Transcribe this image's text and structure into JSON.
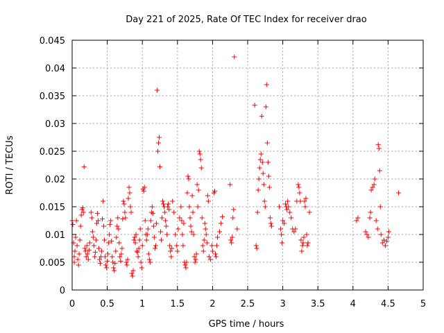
{
  "chart_data": {
    "type": "scatter",
    "title": "Day 221 of 2025, Rate Of TEC Index for receiver drao",
    "xlabel": "GPS time / hours",
    "ylabel": "ROTI / TECUs",
    "xlim": [
      0,
      5
    ],
    "ylim": [
      0,
      0.045
    ],
    "xticks": [
      0,
      0.5,
      1,
      1.5,
      2,
      2.5,
      3,
      3.5,
      4,
      4.5,
      5
    ],
    "xtick_labels": [
      "0",
      "0.5",
      "1",
      "1.5",
      "2",
      "2.5",
      "3",
      "3.5",
      "4",
      "4.5",
      "5"
    ],
    "yticks": [
      0,
      0.005,
      0.01,
      0.015,
      0.02,
      0.025,
      0.03,
      0.035,
      0.04,
      0.045
    ],
    "ytick_labels": [
      "0",
      "0.005",
      "0.01",
      "0.015",
      "0.02",
      "0.025",
      "0.03",
      "0.035",
      "0.04",
      "0.045"
    ],
    "grid": true,
    "marker": "+",
    "color": "#ff0000",
    "series": [
      {
        "name": "drao",
        "points": [
          [
            0.0,
            0.0125
          ],
          [
            0.01,
            0.0118
          ],
          [
            0.02,
            0.0085
          ],
          [
            0.03,
            0.006
          ],
          [
            0.03,
            0.005
          ],
          [
            0.04,
            0.007
          ],
          [
            0.05,
            0.0095
          ],
          [
            0.06,
            0.0125
          ],
          [
            0.07,
            0.008
          ],
          [
            0.08,
            0.0055
          ],
          [
            0.09,
            0.0045
          ],
          [
            0.1,
            0.0065
          ],
          [
            0.11,
            0.009
          ],
          [
            0.12,
            0.0115
          ],
          [
            0.13,
            0.0135
          ],
          [
            0.14,
            0.0145
          ],
          [
            0.15,
            0.0148
          ],
          [
            0.16,
            0.014
          ],
          [
            0.17,
            0.0222
          ],
          [
            0.18,
            0.0075
          ],
          [
            0.19,
            0.007
          ],
          [
            0.2,
            0.006
          ],
          [
            0.21,
            0.008
          ],
          [
            0.22,
            0.0065
          ],
          [
            0.23,
            0.0055
          ],
          [
            0.24,
            0.0072
          ],
          [
            0.25,
            0.0085
          ],
          [
            0.27,
            0.014
          ],
          [
            0.28,
            0.013
          ],
          [
            0.29,
            0.0105
          ],
          [
            0.3,
            0.0095
          ],
          [
            0.31,
            0.008
          ],
          [
            0.32,
            0.006
          ],
          [
            0.33,
            0.0068
          ],
          [
            0.34,
            0.009
          ],
          [
            0.35,
            0.012
          ],
          [
            0.36,
            0.0138
          ],
          [
            0.37,
            0.0125
          ],
          [
            0.38,
            0.0075
          ],
          [
            0.39,
            0.0055
          ],
          [
            0.4,
            0.0048
          ],
          [
            0.41,
            0.006
          ],
          [
            0.42,
            0.007
          ],
          [
            0.43,
            0.0128
          ],
          [
            0.44,
            0.016
          ],
          [
            0.45,
            0.0115
          ],
          [
            0.46,
            0.009
          ],
          [
            0.47,
            0.006
          ],
          [
            0.48,
            0.0045
          ],
          [
            0.49,
            0.004
          ],
          [
            0.5,
            0.0052
          ],
          [
            0.51,
            0.0065
          ],
          [
            0.52,
            0.0085
          ],
          [
            0.53,
            0.01
          ],
          [
            0.54,
            0.0118
          ],
          [
            0.55,
            0.0125
          ],
          [
            0.56,
            0.0088
          ],
          [
            0.57,
            0.006
          ],
          [
            0.58,
            0.005
          ],
          [
            0.59,
            0.004
          ],
          [
            0.6,
            0.0035
          ],
          [
            0.61,
            0.0048
          ],
          [
            0.62,
            0.007
          ],
          [
            0.63,
            0.0095
          ],
          [
            0.64,
            0.0115
          ],
          [
            0.65,
            0.013
          ],
          [
            0.66,
            0.011
          ],
          [
            0.67,
            0.0085
          ],
          [
            0.68,
            0.006
          ],
          [
            0.69,
            0.0052
          ],
          [
            0.7,
            0.0065
          ],
          [
            0.71,
            0.0075
          ],
          [
            0.72,
            0.0128
          ],
          [
            0.73,
            0.016
          ],
          [
            0.74,
            0.0155
          ],
          [
            0.75,
            0.014
          ],
          [
            0.76,
            0.013
          ],
          [
            0.77,
            0.005
          ],
          [
            0.78,
            0.0045
          ],
          [
            0.79,
            0.0055
          ],
          [
            0.8,
            0.0165
          ],
          [
            0.81,
            0.0185
          ],
          [
            0.82,
            0.0175
          ],
          [
            0.83,
            0.015
          ],
          [
            0.84,
            0.014
          ],
          [
            0.85,
            0.003
          ],
          [
            0.86,
            0.0025
          ],
          [
            0.87,
            0.0035
          ],
          [
            0.88,
            0.009
          ],
          [
            0.89,
            0.0095
          ],
          [
            0.9,
            0.0085
          ],
          [
            0.91,
            0.01
          ],
          [
            0.92,
            0.007
          ],
          [
            0.93,
            0.0068
          ],
          [
            0.94,
            0.006
          ],
          [
            0.95,
            0.0075
          ],
          [
            0.96,
            0.009
          ],
          [
            0.97,
            0.011
          ],
          [
            0.98,
            0.005
          ],
          [
            0.99,
            0.004
          ],
          [
            1.0,
            0.008
          ],
          [
            1.01,
            0.0182
          ],
          [
            1.02,
            0.0178
          ],
          [
            1.03,
            0.0185
          ],
          [
            1.04,
            0.0125
          ],
          [
            1.05,
            0.01
          ],
          [
            1.06,
            0.009
          ],
          [
            1.07,
            0.01
          ],
          [
            1.08,
            0.011
          ],
          [
            1.09,
            0.0065
          ],
          [
            1.1,
            0.0055
          ],
          [
            1.11,
            0.005
          ],
          [
            1.12,
            0.0125
          ],
          [
            1.13,
            0.014
          ],
          [
            1.14,
            0.015
          ],
          [
            1.15,
            0.0138
          ],
          [
            1.16,
            0.0115
          ],
          [
            1.17,
            0.0095
          ],
          [
            1.18,
            0.0075
          ],
          [
            1.19,
            0.008
          ],
          [
            1.2,
            0.012
          ],
          [
            1.21,
            0.036
          ],
          [
            1.22,
            0.025
          ],
          [
            1.23,
            0.0265
          ],
          [
            1.24,
            0.0275
          ],
          [
            1.25,
            0.0222
          ],
          [
            1.26,
            0.0105
          ],
          [
            1.27,
            0.009
          ],
          [
            1.28,
            0.013
          ],
          [
            1.29,
            0.016
          ],
          [
            1.3,
            0.0155
          ],
          [
            1.31,
            0.015
          ],
          [
            1.32,
            0.014
          ],
          [
            1.33,
            0.0125
          ],
          [
            1.34,
            0.0115
          ],
          [
            1.35,
            0.01
          ],
          [
            1.36,
            0.015
          ],
          [
            1.37,
            0.0155
          ],
          [
            1.38,
            0.0145
          ],
          [
            1.39,
            0.008
          ],
          [
            1.4,
            0.007
          ],
          [
            1.41,
            0.006
          ],
          [
            1.42,
            0.0075
          ],
          [
            1.43,
            0.016
          ],
          [
            1.45,
            0.014
          ],
          [
            1.47,
            0.01
          ],
          [
            1.49,
            0.008
          ],
          [
            1.5,
            0.007
          ],
          [
            1.51,
            0.011
          ],
          [
            1.53,
            0.013
          ],
          [
            1.55,
            0.015
          ],
          [
            1.56,
            0.0125
          ],
          [
            1.57,
            0.01
          ],
          [
            1.58,
            0.008
          ],
          [
            1.59,
            0.012
          ],
          [
            1.6,
            0.005
          ],
          [
            1.61,
            0.0045
          ],
          [
            1.62,
            0.004
          ],
          [
            1.63,
            0.005
          ],
          [
            1.64,
            0.0175
          ],
          [
            1.65,
            0.0205
          ],
          [
            1.66,
            0.02
          ],
          [
            1.67,
            0.015
          ],
          [
            1.68,
            0.013
          ],
          [
            1.69,
            0.0115
          ],
          [
            1.7,
            0.0105
          ],
          [
            1.71,
            0.017
          ],
          [
            1.72,
            0.014
          ],
          [
            1.73,
            0.01
          ],
          [
            1.74,
            0.006
          ],
          [
            1.75,
            0.005
          ],
          [
            1.76,
            0.0055
          ],
          [
            1.77,
            0.0065
          ],
          [
            1.78,
            0.019
          ],
          [
            1.79,
            0.015
          ],
          [
            1.8,
            0.018
          ],
          [
            1.81,
            0.025
          ],
          [
            1.82,
            0.0245
          ],
          [
            1.83,
            0.0235
          ],
          [
            1.84,
            0.022
          ],
          [
            1.85,
            0.013
          ],
          [
            1.86,
            0.008
          ],
          [
            1.87,
            0.007
          ],
          [
            1.88,
            0.009
          ],
          [
            1.89,
            0.012
          ],
          [
            1.9,
            0.011
          ],
          [
            1.91,
            0.01
          ],
          [
            1.92,
            0.0085
          ],
          [
            1.93,
            0.017
          ],
          [
            1.94,
            0.016
          ],
          [
            1.95,
            0.006
          ],
          [
            1.97,
            0.0055
          ],
          [
            1.99,
            0.008
          ],
          [
            2.0,
            0.007
          ],
          [
            2.02,
            0.0175
          ],
          [
            2.03,
            0.0178
          ],
          [
            2.04,
            0.0065
          ],
          [
            2.05,
            0.006
          ],
          [
            2.06,
            0.008
          ],
          [
            2.07,
            0.0095
          ],
          [
            2.1,
            0.0105
          ],
          [
            2.12,
            0.012
          ],
          [
            2.14,
            0.0132
          ],
          [
            2.25,
            0.019
          ],
          [
            2.26,
            0.009
          ],
          [
            2.27,
            0.0085
          ],
          [
            2.28,
            0.0095
          ],
          [
            2.29,
            0.013
          ],
          [
            2.3,
            0.0145
          ],
          [
            2.31,
            0.042
          ],
          [
            2.35,
            0.011
          ],
          [
            2.6,
            0.0333
          ],
          [
            2.62,
            0.008
          ],
          [
            2.63,
            0.0075
          ],
          [
            2.64,
            0.014
          ],
          [
            2.65,
            0.018
          ],
          [
            2.66,
            0.02
          ],
          [
            2.67,
            0.022
          ],
          [
            2.68,
            0.0235
          ],
          [
            2.69,
            0.0245
          ],
          [
            2.7,
            0.0313
          ],
          [
            2.71,
            0.023
          ],
          [
            2.72,
            0.021
          ],
          [
            2.73,
            0.019
          ],
          [
            2.74,
            0.016
          ],
          [
            2.75,
            0.015
          ],
          [
            2.76,
            0.033
          ],
          [
            2.77,
            0.037
          ],
          [
            2.78,
            0.0265
          ],
          [
            2.79,
            0.023
          ],
          [
            2.8,
            0.0205
          ],
          [
            2.81,
            0.0185
          ],
          [
            2.82,
            0.013
          ],
          [
            2.83,
            0.012
          ],
          [
            2.84,
            0.0115
          ],
          [
            2.95,
            0.015
          ],
          [
            2.97,
            0.011
          ],
          [
            2.98,
            0.01
          ],
          [
            2.99,
            0.0085
          ],
          [
            3.0,
            0.0125
          ],
          [
            3.02,
            0.012
          ],
          [
            3.04,
            0.0155
          ],
          [
            3.05,
            0.015
          ],
          [
            3.06,
            0.0145
          ],
          [
            3.07,
            0.016
          ],
          [
            3.08,
            0.015
          ],
          [
            3.1,
            0.014
          ],
          [
            3.12,
            0.013
          ],
          [
            3.14,
            0.011
          ],
          [
            3.16,
            0.0105
          ],
          [
            3.18,
            0.011
          ],
          [
            3.2,
            0.016
          ],
          [
            3.22,
            0.019
          ],
          [
            3.23,
            0.0185
          ],
          [
            3.24,
            0.0175
          ],
          [
            3.25,
            0.016
          ],
          [
            3.26,
            0.009
          ],
          [
            3.27,
            0.007
          ],
          [
            3.28,
            0.008
          ],
          [
            3.29,
            0.0085
          ],
          [
            3.3,
            0.0095
          ],
          [
            3.31,
            0.016
          ],
          [
            3.32,
            0.015
          ],
          [
            3.33,
            0.0165
          ],
          [
            3.34,
            0.01
          ],
          [
            3.35,
            0.008
          ],
          [
            3.36,
            0.0085
          ],
          [
            3.38,
            0.014
          ],
          [
            4.05,
            0.0125
          ],
          [
            4.07,
            0.013
          ],
          [
            4.18,
            0.0105
          ],
          [
            4.2,
            0.01
          ],
          [
            4.22,
            0.0095
          ],
          [
            4.24,
            0.013
          ],
          [
            4.25,
            0.014
          ],
          [
            4.26,
            0.018
          ],
          [
            4.28,
            0.0185
          ],
          [
            4.3,
            0.019
          ],
          [
            4.31,
            0.02
          ],
          [
            4.33,
            0.0125
          ],
          [
            4.35,
            0.011
          ],
          [
            4.36,
            0.0262
          ],
          [
            4.37,
            0.0255
          ],
          [
            4.38,
            0.0215
          ],
          [
            4.39,
            0.015
          ],
          [
            4.4,
            0.01
          ],
          [
            4.42,
            0.0085
          ],
          [
            4.44,
            0.009
          ],
          [
            4.46,
            0.008
          ],
          [
            4.48,
            0.0088
          ],
          [
            4.5,
            0.0095
          ],
          [
            4.51,
            0.0105
          ],
          [
            4.65,
            0.0175
          ]
        ]
      }
    ]
  }
}
